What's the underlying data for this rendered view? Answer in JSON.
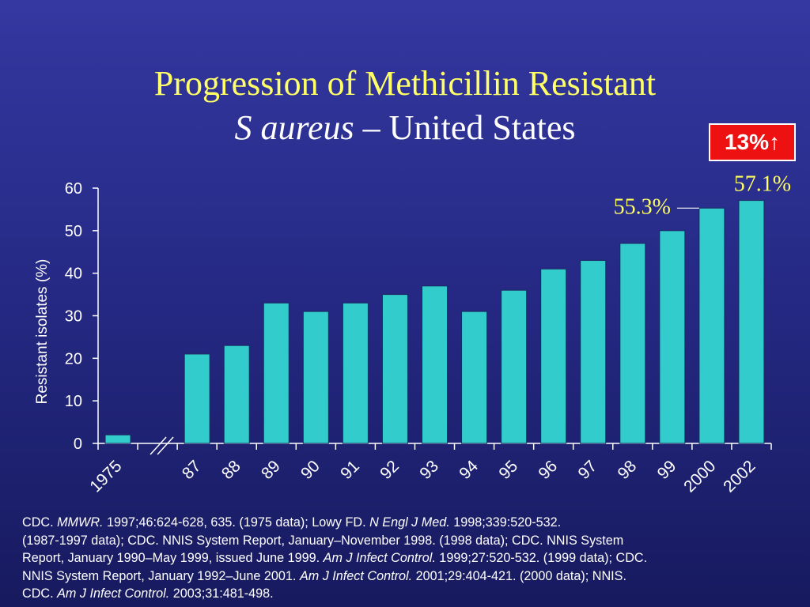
{
  "title": {
    "line1": "Progression of Methicillin Resistant",
    "line2_italic": "S aureus",
    "line2_rest": " – United States"
  },
  "badge": {
    "text": "13%",
    "arrow_glyph": "↑",
    "arrow_icon": "up-arrow-icon",
    "color": "#ee1111"
  },
  "chart_data": {
    "type": "bar",
    "categories": [
      "1975",
      "87",
      "88",
      "89",
      "90",
      "91",
      "92",
      "93",
      "94",
      "95",
      "96",
      "97",
      "98",
      "99",
      "2000",
      "2002"
    ],
    "values": [
      2,
      21,
      23,
      33,
      31,
      33,
      35,
      37,
      31,
      36,
      41,
      43,
      47,
      50,
      55.3,
      57.1
    ],
    "ylabel": "Resistant isolates (%)",
    "ylim": [
      0,
      60
    ],
    "yticks": [
      0,
      10,
      20,
      30,
      40,
      50,
      60
    ],
    "axis_break_after": "1975",
    "grid": false,
    "bar_color": "#33cccc",
    "annotations": [
      {
        "category": "2000",
        "text": "55.3%"
      },
      {
        "category": "2002",
        "text": "57.1%"
      }
    ]
  },
  "footnote": [
    [
      {
        "t": "CDC. "
      },
      {
        "t": "MMWR.",
        "i": true
      },
      {
        "t": " 1997;46:624-628, 635. (1975 data); Lowy FD. "
      },
      {
        "t": "N Engl J Med.",
        "i": true
      },
      {
        "t": " 1998;339:520-532."
      }
    ],
    [
      {
        "t": "(1987-1997 data); CDC. NNIS System Report, January–November 1998. (1998 data); CDC. NNIS System"
      }
    ],
    [
      {
        "t": "Report, January 1990–May 1999, issued June 1999. "
      },
      {
        "t": "Am J Infect Control.",
        "i": true
      },
      {
        "t": " 1999;27:520-532. (1999 data); CDC."
      }
    ],
    [
      {
        "t": "NNIS System Report, January 1992–June 2001. "
      },
      {
        "t": "Am J Infect Control.",
        "i": true
      },
      {
        "t": " 2001;29:404-421. (2000 data); NNIS."
      }
    ],
    [
      {
        "t": "CDC. "
      },
      {
        "t": "Am J Infect Control.",
        "i": true
      },
      {
        "t": " 2003;31:481-498."
      }
    ]
  ]
}
